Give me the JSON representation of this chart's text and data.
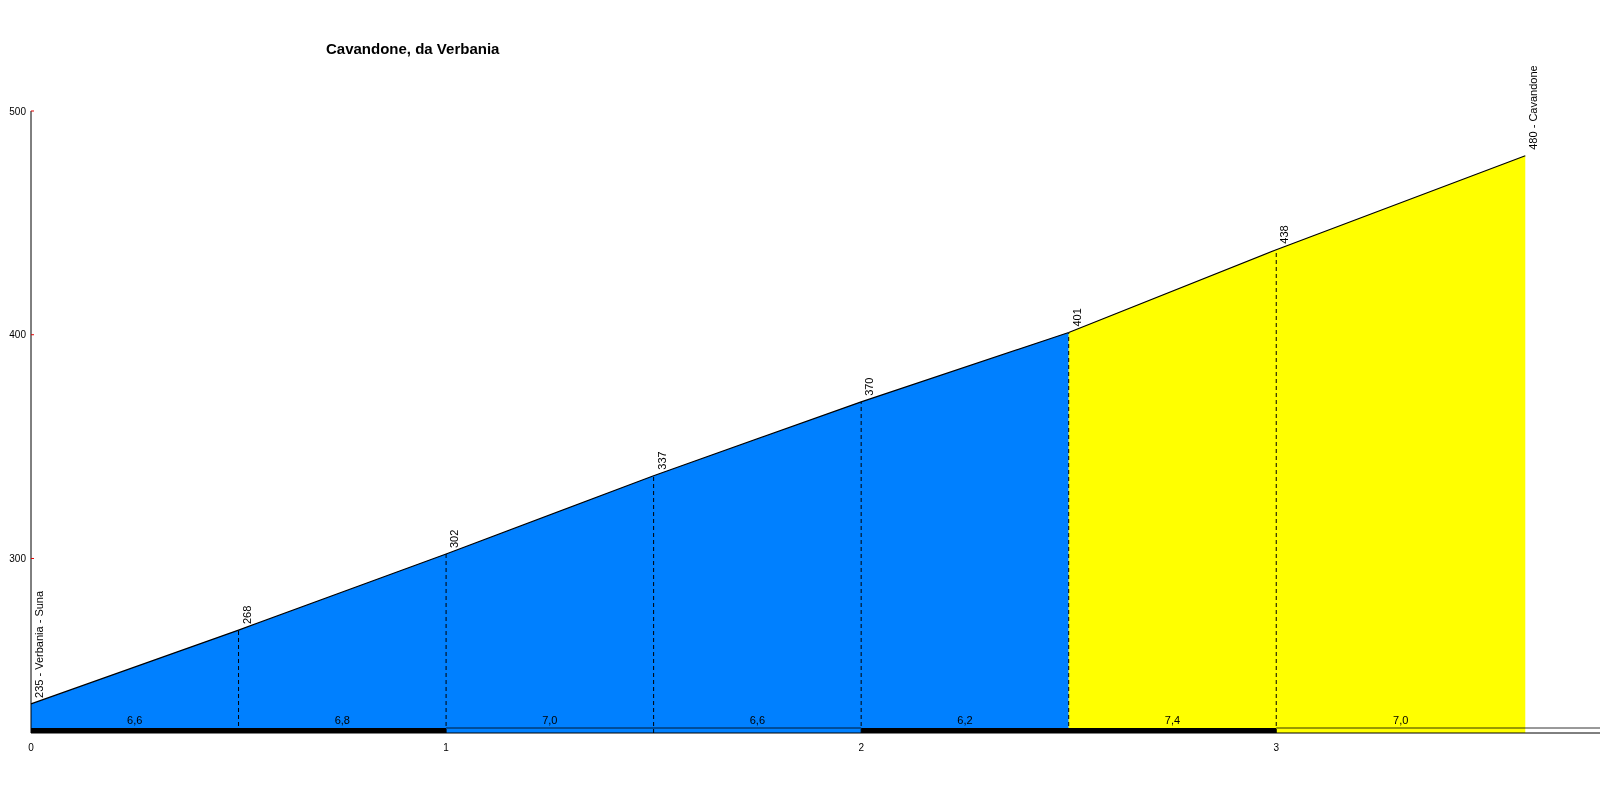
{
  "chart_data": {
    "type": "area",
    "title": "Cavandone, da Verbania",
    "xlim": [
      0,
      3.78
    ],
    "xticks": [
      0,
      1,
      2,
      3
    ],
    "ylim": [
      222,
      500
    ],
    "yticks": [
      300,
      400,
      500
    ],
    "series": [
      {
        "color": "#0080ff",
        "x": [
          0,
          0.5,
          1,
          1.5,
          2,
          2.5
        ],
        "values": [
          235,
          268,
          302,
          337,
          370,
          401
        ],
        "value_labels": [
          "235 - Verbania - Suna",
          "268",
          "302",
          "337",
          "370",
          "401"
        ]
      },
      {
        "color": "#ffff00",
        "x": [
          2.5,
          3,
          3.6
        ],
        "values": [
          401,
          438,
          480
        ],
        "value_labels": [
          null,
          "438",
          "480 - Cavandone"
        ]
      }
    ],
    "ref_lines": [
      {
        "axis": "x",
        "value": 0.5,
        "color": "#000000",
        "line_style": "dashed"
      },
      {
        "axis": "x",
        "value": 1,
        "color": "#000000",
        "line_style": "dashed"
      },
      {
        "axis": "x",
        "value": 1.5,
        "color": "#000000",
        "line_style": "dashed"
      },
      {
        "axis": "x",
        "value": 2,
        "color": "#000000",
        "line_style": "dashed"
      },
      {
        "axis": "x",
        "value": 2.5,
        "color": "#000000",
        "line_style": "dashed"
      },
      {
        "axis": "x",
        "value": 3,
        "color": "#000000",
        "line_style": "dashed"
      }
    ],
    "annotations": [
      "6,6",
      "6,8",
      "7,0",
      "6,6",
      "6,2",
      "7,4",
      "7,0"
    ]
  }
}
